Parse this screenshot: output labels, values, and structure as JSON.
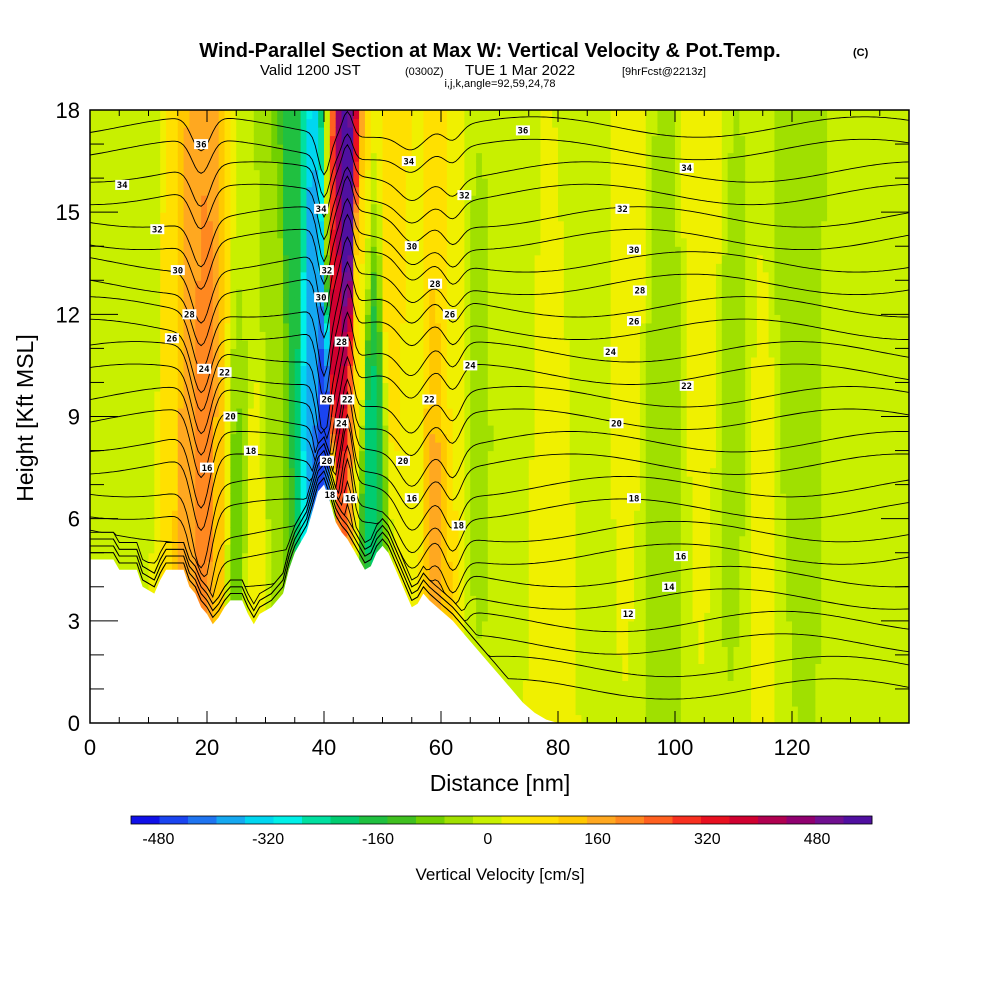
{
  "title": {
    "main": "Wind-Parallel Section at Max W: Vertical Velocity & Pot.Temp.",
    "main_suffix": "(C)",
    "valid_prefix": "Valid 1200 JST",
    "valid_utc": "(0300Z)",
    "valid_date": "TUE 1 Mar 2022",
    "forecast": "[9hrFcst@2213z]",
    "indices": "i,j,k,angle=92,59,24,78"
  },
  "chart_data": {
    "type": "heatmap",
    "xlabel": "Distance [nm]",
    "ylabel": "Height [Kft MSL]",
    "xlim": [
      0,
      140
    ],
    "ylim": [
      0,
      18
    ],
    "x_ticks": [
      "0",
      "20",
      "40",
      "60",
      "80",
      "100",
      "120"
    ],
    "y_ticks": [
      "0",
      "3",
      "6",
      "9",
      "12",
      "15",
      "18"
    ],
    "colorbar": {
      "label": "Vertical Velocity [cm/s]",
      "range": [
        -520,
        560
      ],
      "ticks": [
        "-480",
        "-320",
        "-160",
        "0",
        "160",
        "320",
        "480"
      ],
      "colors": [
        "#1010e8",
        "#1a44f0",
        "#1f74f0",
        "#15a8f0",
        "#00d6f0",
        "#00f0e8",
        "#00e0a0",
        "#00cc70",
        "#20c040",
        "#40c020",
        "#70d000",
        "#a0e000",
        "#c8f000",
        "#f0f000",
        "#ffe000",
        "#ffc800",
        "#ffa820",
        "#ff8820",
        "#ff6020",
        "#f83020",
        "#e81020",
        "#d00030",
        "#b00050",
        "#900070",
        "#701090",
        "#5010a0"
      ]
    },
    "vertical_velocity_cells": [
      {
        "x": 2,
        "h": 17,
        "w": -20
      },
      {
        "x": 5,
        "h": 16,
        "w": 0
      },
      {
        "x": 10,
        "h": 14,
        "w": -10
      },
      {
        "x": 14,
        "h": 12,
        "w": 80
      },
      {
        "x": 17,
        "h": 10,
        "w": 180
      },
      {
        "x": 20,
        "h": 8,
        "w": 220
      },
      {
        "x": 22,
        "h": 6,
        "w": 120
      },
      {
        "x": 25,
        "h": 5,
        "w": -80
      },
      {
        "x": 28,
        "h": 4,
        "w": 40
      },
      {
        "x": 32,
        "h": 10,
        "w": -40
      },
      {
        "x": 35,
        "h": 14,
        "w": -180
      },
      {
        "x": 38,
        "h": 12,
        "w": -380
      },
      {
        "x": 40,
        "h": 9,
        "w": -460
      },
      {
        "x": 42,
        "h": 11,
        "w": 380
      },
      {
        "x": 44,
        "h": 15,
        "w": 540
      },
      {
        "x": 46,
        "h": 12,
        "w": 60
      },
      {
        "x": 48,
        "h": 8,
        "w": -200
      },
      {
        "x": 52,
        "h": 14,
        "w": 100
      },
      {
        "x": 55,
        "h": 9,
        "w": 20
      },
      {
        "x": 59,
        "h": 5,
        "w": 150
      },
      {
        "x": 62,
        "h": 12,
        "w": 60
      },
      {
        "x": 66,
        "h": 10,
        "w": -30
      },
      {
        "x": 72,
        "h": 14,
        "w": 10
      },
      {
        "x": 80,
        "h": 4,
        "w": 40
      },
      {
        "x": 85,
        "h": 12,
        "w": -20
      },
      {
        "x": 92,
        "h": 15,
        "w": 40
      },
      {
        "x": 98,
        "h": 9,
        "w": -40
      },
      {
        "x": 105,
        "h": 16,
        "w": 60
      },
      {
        "x": 110,
        "h": 10,
        "w": -30
      },
      {
        "x": 115,
        "h": 6,
        "w": 30
      },
      {
        "x": 120,
        "h": 13,
        "w": -40
      },
      {
        "x": 128,
        "h": 8,
        "w": -20
      },
      {
        "x": 135,
        "h": 15,
        "w": 20
      }
    ],
    "terrain_kft": [
      [
        0,
        4.8
      ],
      [
        4,
        4.8
      ],
      [
        5,
        4.5
      ],
      [
        8,
        4.5
      ],
      [
        9,
        4.0
      ],
      [
        11,
        3.8
      ],
      [
        12,
        4.2
      ],
      [
        13,
        4.5
      ],
      [
        16,
        4.5
      ],
      [
        17,
        4.0
      ],
      [
        18,
        3.8
      ],
      [
        19,
        3.4
      ],
      [
        20,
        3.2
      ],
      [
        21,
        2.9
      ],
      [
        22,
        3.1
      ],
      [
        23,
        3.4
      ],
      [
        24,
        3.6
      ],
      [
        26,
        3.6
      ],
      [
        27,
        3.2
      ],
      [
        28,
        2.9
      ],
      [
        29,
        3.2
      ],
      [
        31,
        3.4
      ],
      [
        33,
        3.8
      ],
      [
        34,
        4.5
      ],
      [
        35,
        5.0
      ],
      [
        36,
        5.3
      ],
      [
        37,
        5.6
      ],
      [
        38,
        6.2
      ],
      [
        39,
        6.8
      ],
      [
        40,
        7.0
      ],
      [
        41,
        6.5
      ],
      [
        42,
        5.9
      ],
      [
        43,
        5.6
      ],
      [
        44,
        5.4
      ],
      [
        45,
        5.1
      ],
      [
        46,
        4.8
      ],
      [
        47,
        4.5
      ],
      [
        48,
        4.6
      ],
      [
        49,
        5.0
      ],
      [
        50,
        5.2
      ],
      [
        51,
        5.0
      ],
      [
        52,
        4.6
      ],
      [
        53,
        4.2
      ],
      [
        54,
        3.8
      ],
      [
        55,
        3.4
      ],
      [
        56,
        3.5
      ],
      [
        57,
        3.8
      ],
      [
        58,
        3.6
      ],
      [
        60,
        3.3
      ],
      [
        62,
        3.0
      ],
      [
        64,
        2.6
      ],
      [
        66,
        2.2
      ],
      [
        68,
        1.8
      ],
      [
        70,
        1.4
      ],
      [
        72,
        1.0
      ],
      [
        74,
        0.6
      ],
      [
        76,
        0.3
      ],
      [
        78,
        0.1
      ],
      [
        80,
        0.0
      ]
    ],
    "theta_levels_C": [
      12,
      14,
      16,
      18,
      20,
      22,
      24,
      26,
      28,
      30,
      32,
      34,
      36
    ],
    "contour_labels": [
      {
        "x": 5.5,
        "h": 15.8,
        "t": "34"
      },
      {
        "x": 11.5,
        "h": 14.5,
        "t": "32"
      },
      {
        "x": 15,
        "h": 13.3,
        "t": "30"
      },
      {
        "x": 17,
        "h": 12.0,
        "t": "28"
      },
      {
        "x": 14,
        "h": 11.3,
        "t": "26"
      },
      {
        "x": 19.5,
        "h": 10.4,
        "t": "24"
      },
      {
        "x": 23,
        "h": 10.3,
        "t": "22"
      },
      {
        "x": 24,
        "h": 9.0,
        "t": "20"
      },
      {
        "x": 27.5,
        "h": 8.0,
        "t": "18"
      },
      {
        "x": 20,
        "h": 7.5,
        "t": "16"
      },
      {
        "x": 19,
        "h": 17.0,
        "t": "36"
      },
      {
        "x": 39.5,
        "h": 15.1,
        "t": "34"
      },
      {
        "x": 40.5,
        "h": 13.3,
        "t": "32"
      },
      {
        "x": 39.5,
        "h": 12.5,
        "t": "30"
      },
      {
        "x": 43,
        "h": 11.2,
        "t": "28"
      },
      {
        "x": 40.5,
        "h": 9.5,
        "t": "26"
      },
      {
        "x": 44,
        "h": 9.5,
        "t": "22"
      },
      {
        "x": 43,
        "h": 8.8,
        "t": "24"
      },
      {
        "x": 40.5,
        "h": 7.7,
        "t": "20"
      },
      {
        "x": 41,
        "h": 6.7,
        "t": "18"
      },
      {
        "x": 44.5,
        "h": 6.6,
        "t": "16"
      },
      {
        "x": 54.5,
        "h": 16.5,
        "t": "34"
      },
      {
        "x": 55,
        "h": 14.0,
        "t": "30"
      },
      {
        "x": 59,
        "h": 12.9,
        "t": "28"
      },
      {
        "x": 61.5,
        "h": 12.0,
        "t": "26"
      },
      {
        "x": 65,
        "h": 10.5,
        "t": "24"
      },
      {
        "x": 58,
        "h": 9.5,
        "t": "22"
      },
      {
        "x": 53.5,
        "h": 7.7,
        "t": "20"
      },
      {
        "x": 55,
        "h": 6.6,
        "t": "16"
      },
      {
        "x": 63,
        "h": 5.8,
        "t": "18"
      },
      {
        "x": 64,
        "h": 15.5,
        "t": "32"
      },
      {
        "x": 74,
        "h": 17.4,
        "t": "36"
      },
      {
        "x": 102,
        "h": 16.3,
        "t": "34"
      },
      {
        "x": 91,
        "h": 15.1,
        "t": "32"
      },
      {
        "x": 93,
        "h": 13.9,
        "t": "30"
      },
      {
        "x": 94,
        "h": 12.7,
        "t": "28"
      },
      {
        "x": 93,
        "h": 11.8,
        "t": "26"
      },
      {
        "x": 89,
        "h": 10.9,
        "t": "24"
      },
      {
        "x": 102,
        "h": 9.9,
        "t": "22"
      },
      {
        "x": 90,
        "h": 8.8,
        "t": "20"
      },
      {
        "x": 93,
        "h": 6.6,
        "t": "18"
      },
      {
        "x": 101,
        "h": 4.9,
        "t": "16"
      },
      {
        "x": 99,
        "h": 4.0,
        "t": "14"
      },
      {
        "x": 92,
        "h": 3.2,
        "t": "12"
      }
    ]
  }
}
